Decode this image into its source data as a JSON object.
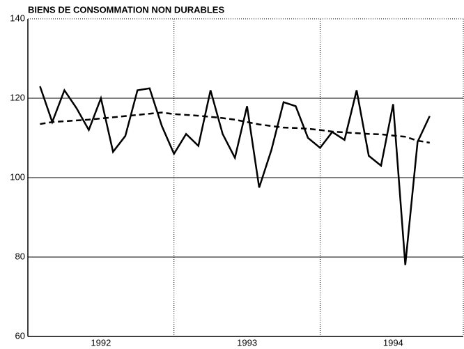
{
  "chart_data": {
    "type": "line",
    "title": "BIENS DE CONSOMMATION NON DURABLES",
    "x": [
      1992.083,
      1992.167,
      1992.25,
      1992.333,
      1992.417,
      1992.5,
      1992.583,
      1992.667,
      1992.75,
      1992.833,
      1992.917,
      1993,
      1993.083,
      1993.167,
      1993.25,
      1993.333,
      1993.417,
      1993.5,
      1993.583,
      1993.667,
      1993.75,
      1993.833,
      1993.917,
      1994,
      1994.083,
      1994.167,
      1994.25,
      1994.333,
      1994.417,
      1994.5,
      1994.583,
      1994.667,
      1994.75
    ],
    "series": [
      {
        "color": "#000000",
        "dashed": false,
        "values": [
          123,
          114,
          122,
          117.5,
          112,
          120,
          106.5,
          110.5,
          122,
          122.5,
          113,
          106,
          111,
          108,
          122,
          111,
          105,
          118,
          97.5,
          107,
          119,
          118,
          110,
          107.5,
          111.5,
          109.5,
          122,
          105.5,
          103,
          118.5,
          78,
          109,
          115.5
        ]
      },
      {
        "color": "#000000",
        "dashed": true,
        "values": [
          113.5,
          114,
          114.2,
          114.4,
          114.6,
          114.9,
          115.2,
          115.5,
          115.8,
          116.1,
          116.4,
          116,
          115.8,
          115.6,
          115.3,
          115,
          114.6,
          114,
          113.4,
          113,
          112.6,
          112.5,
          112.3,
          112,
          111.6,
          111.4,
          111.2,
          111,
          110.9,
          110.6,
          110.3,
          109.3,
          108.8
        ]
      }
    ],
    "xlim": [
      1992,
      1994.98
    ],
    "xticks": [
      1992,
      1993,
      1994
    ],
    "ylim": [
      60,
      140
    ],
    "yticks": [
      60,
      80,
      100,
      120,
      140
    ],
    "grid": true
  }
}
